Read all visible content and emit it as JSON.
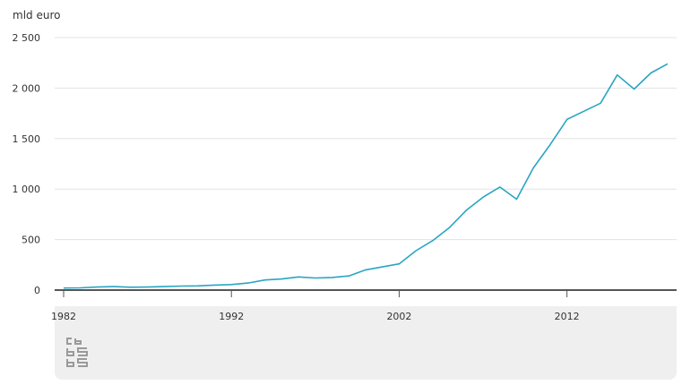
{
  "chart_data": {
    "type": "line",
    "ylabel": "mld euro",
    "xlim": [
      1982,
      2018
    ],
    "ylim": [
      0,
      2500
    ],
    "yticks": [
      0,
      500,
      1000,
      1500,
      2000,
      2500
    ],
    "ytick_labels": [
      "0",
      "500",
      "1 000",
      "1 500",
      "2 000",
      "2 500"
    ],
    "xticks": [
      1982,
      1992,
      2002,
      2012
    ],
    "xtick_labels": [
      "1982",
      "1992",
      "2002",
      "2012"
    ],
    "grid": true,
    "legend": "none",
    "series": [
      {
        "color": "#2aa5c2",
        "x": [
          1982,
          1983,
          1984,
          1985,
          1986,
          1987,
          1988,
          1989,
          1990,
          1991,
          1992,
          1993,
          1994,
          1995,
          1996,
          1997,
          1998,
          1999,
          2000,
          2001,
          2002,
          2003,
          2004,
          2005,
          2006,
          2007,
          2008,
          2009,
          2010,
          2011,
          2012,
          2013,
          2014,
          2015,
          2016,
          2017,
          2018
        ],
        "y": [
          20,
          22,
          30,
          35,
          28,
          30,
          35,
          40,
          42,
          50,
          55,
          70,
          100,
          110,
          130,
          120,
          125,
          140,
          200,
          230,
          260,
          390,
          490,
          620,
          790,
          920,
          1020,
          900,
          1210,
          1440,
          1690,
          1770,
          1850,
          2130,
          1990,
          2150,
          2240
        ]
      }
    ]
  },
  "colors": {
    "line": "#2aa5c2",
    "axis": "#555555",
    "grid": "#e3e3e3",
    "panel": "#efefef",
    "logo": "#9a9a9a"
  },
  "logo": {
    "icon": "cbs-logo-icon"
  }
}
